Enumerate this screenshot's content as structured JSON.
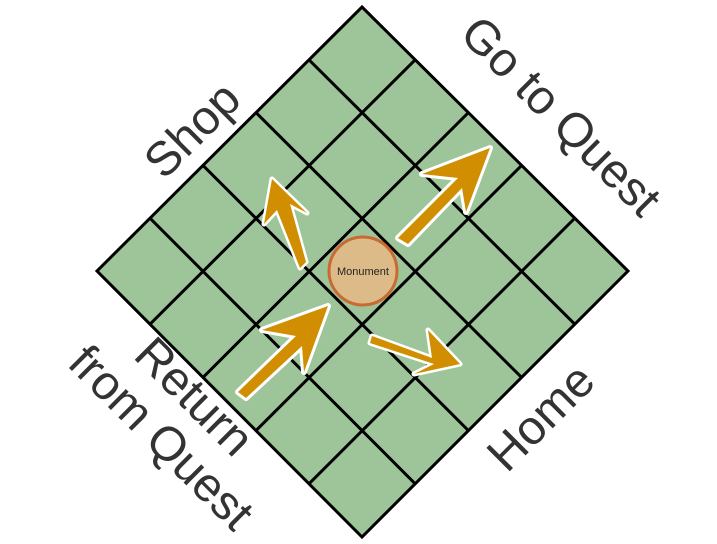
{
  "diagram": {
    "grid_size": 5,
    "cell_color": "#9ec59a",
    "line_color": "#000000",
    "arrow_color": "#d08e00",
    "arrow_outline": "#ffffff",
    "monument": {
      "label": "Monument",
      "fill": "#ddbb88",
      "stroke": "#c86a32"
    },
    "labels": {
      "shop": "Shop",
      "go_to_quest": "Go to Quest",
      "return_line1": "Return",
      "return_line2": "from Quest",
      "home": "Home"
    },
    "arrows": [
      {
        "name": "arrow-to-shop",
        "icon": "arrow-up-left-icon"
      },
      {
        "name": "arrow-to-quest",
        "icon": "arrow-up-right-icon"
      },
      {
        "name": "arrow-from-quest",
        "icon": "arrow-up-right-icon"
      },
      {
        "name": "arrow-to-home",
        "icon": "arrow-down-right-icon"
      }
    ]
  }
}
